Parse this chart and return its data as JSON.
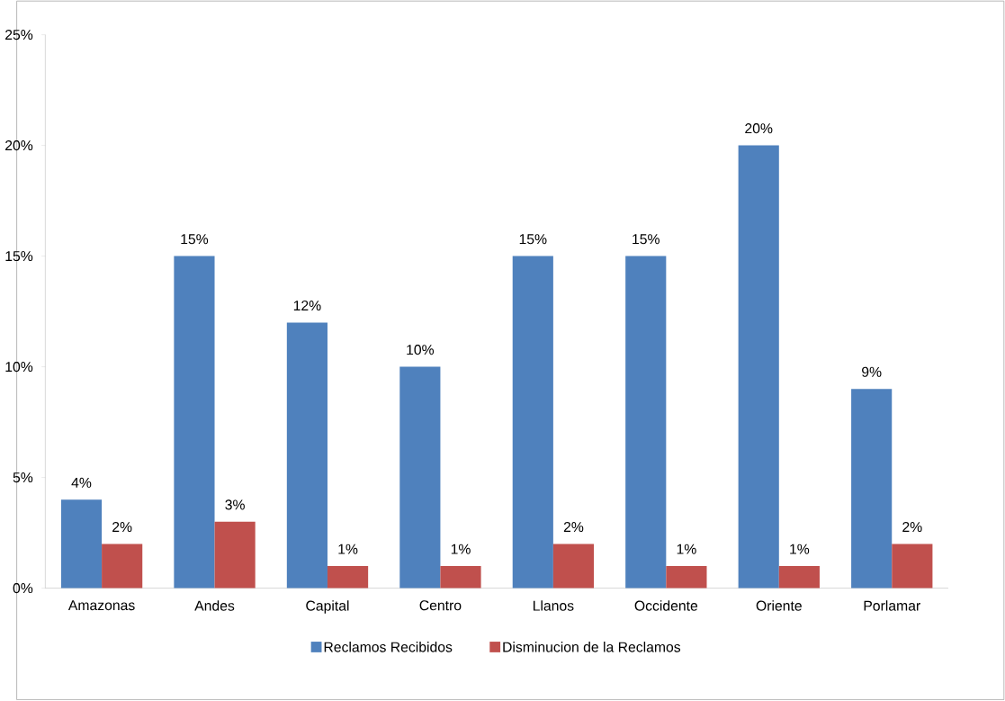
{
  "chart_data": {
    "type": "bar",
    "categories": [
      "Amazonas",
      "Andes",
      "Capital",
      "Centro",
      "Llanos",
      "Occidente",
      "Oriente",
      "Porlamar"
    ],
    "series": [
      {
        "name": "Reclamos Recibidos",
        "color": "#4f81bd",
        "values": [
          4,
          15,
          12,
          10,
          15,
          15,
          20,
          9
        ],
        "value_labels": [
          "4%",
          "15%",
          "12%",
          "10%",
          "15%",
          "15%",
          "20%",
          "9%"
        ]
      },
      {
        "name": "Disminucion de la Reclamos",
        "color": "#c0504d",
        "values": [
          2,
          3,
          1,
          1,
          2,
          1,
          1,
          2
        ],
        "value_labels": [
          "2%",
          "3%",
          "1%",
          "1%",
          "2%",
          "1%",
          "1%",
          "2%"
        ]
      }
    ],
    "ylim": [
      0,
      25
    ],
    "yticks": [
      {
        "value": 0,
        "label": "0%"
      },
      {
        "value": 5,
        "label": "5%"
      },
      {
        "value": 10,
        "label": "10%"
      },
      {
        "value": 15,
        "label": "15%"
      },
      {
        "value": 20,
        "label": "20%"
      },
      {
        "value": 25,
        "label": "25%"
      }
    ],
    "grid": false,
    "legend": "bottom"
  }
}
